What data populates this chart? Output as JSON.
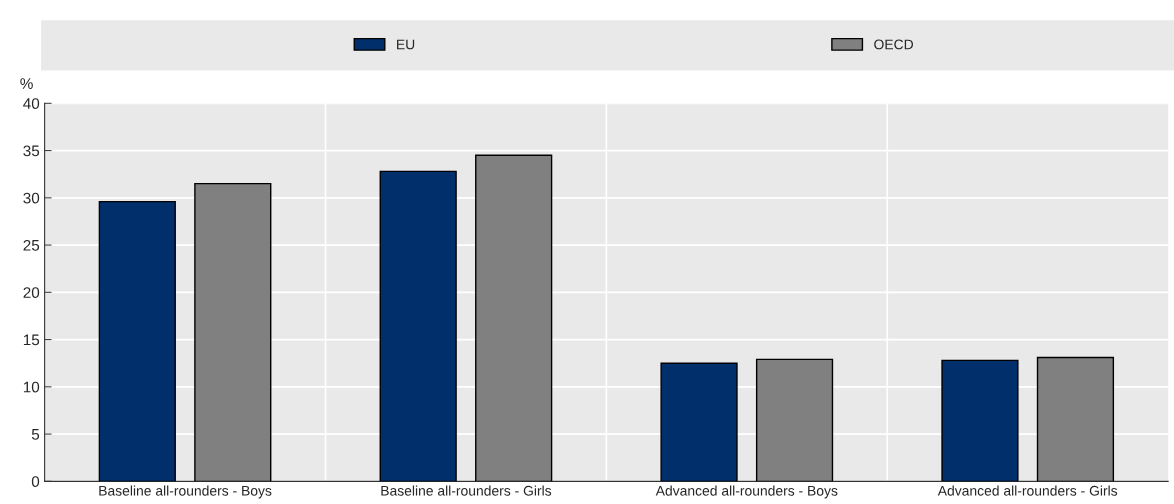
{
  "chart_data": {
    "type": "bar",
    "ylabel": "%",
    "categories": [
      "Baseline all-rounders - Boys",
      "Baseline all-rounders - Girls",
      "Advanced all-rounders - Boys",
      "Advanced all-rounders - Girls"
    ],
    "series": [
      {
        "name": "EU",
        "color": "#002f6c",
        "values": [
          29.6,
          32.8,
          12.5,
          12.8
        ]
      },
      {
        "name": "OECD",
        "color": "#808080",
        "values": [
          31.5,
          34.5,
          12.9,
          13.1
        ]
      }
    ],
    "ylim": [
      0,
      40
    ],
    "yticks": [
      0,
      5,
      10,
      15,
      20,
      25,
      30,
      35,
      40
    ],
    "grid": true,
    "legend": "top"
  }
}
